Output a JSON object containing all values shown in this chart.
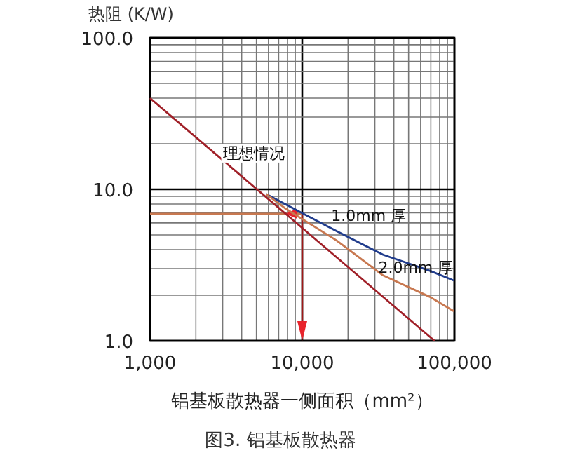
{
  "chart_data": {
    "type": "line",
    "ylabel": "热阻 (K/W)",
    "xlabel": "铝基板散热器一侧面积（mm²）",
    "log": "xy",
    "grid": true,
    "marker": "none",
    "line_style": "solid",
    "xlim": [
      1000,
      100000
    ],
    "ylim": [
      1,
      100
    ],
    "xticks": [
      {
        "value": 1000,
        "label": "1,000"
      },
      {
        "value": 2000,
        "label": null
      },
      {
        "value": 3000,
        "label": null
      },
      {
        "value": 4000,
        "label": null
      },
      {
        "value": 5000,
        "label": null
      },
      {
        "value": 6000,
        "label": null
      },
      {
        "value": 7000,
        "label": null
      },
      {
        "value": 8000,
        "label": null
      },
      {
        "value": 9000,
        "label": null
      },
      {
        "value": 10000,
        "label": "10,000"
      },
      {
        "value": 20000,
        "label": null
      },
      {
        "value": 30000,
        "label": null
      },
      {
        "value": 40000,
        "label": null
      },
      {
        "value": 50000,
        "label": null
      },
      {
        "value": 60000,
        "label": null
      },
      {
        "value": 70000,
        "label": null
      },
      {
        "value": 80000,
        "label": null
      },
      {
        "value": 90000,
        "label": null
      },
      {
        "value": 100000,
        "label": "100,000"
      }
    ],
    "yticks": [
      {
        "value": 1,
        "label": "1.0"
      },
      {
        "value": 2,
        "label": null
      },
      {
        "value": 3,
        "label": null
      },
      {
        "value": 4,
        "label": null
      },
      {
        "value": 5,
        "label": null
      },
      {
        "value": 6,
        "label": null
      },
      {
        "value": 7,
        "label": null
      },
      {
        "value": 8,
        "label": null
      },
      {
        "value": 9,
        "label": null
      },
      {
        "value": 10,
        "label": "10.0"
      },
      {
        "value": 20,
        "label": null
      },
      {
        "value": 30,
        "label": null
      },
      {
        "value": 40,
        "label": null
      },
      {
        "value": 50,
        "label": null
      },
      {
        "value": 60,
        "label": null
      },
      {
        "value": 70,
        "label": null
      },
      {
        "value": 80,
        "label": null
      },
      {
        "value": 90,
        "label": null
      },
      {
        "value": 100,
        "label": "100.0"
      }
    ],
    "series": [
      {
        "color": "#a02028",
        "x": [
          1000,
          74000
        ],
        "values": [
          40,
          1
        ]
      },
      {
        "color": "#203c8c",
        "x": [
          5800,
          9900,
          16800,
          34000,
          69000,
          99000
        ],
        "values": [
          9.3,
          7.0,
          5.3,
          3.7,
          2.9,
          2.5
        ]
      },
      {
        "color": "#c87850",
        "x": [
          5800,
          7700,
          16800,
          34000,
          69000,
          99000
        ],
        "values": [
          9.3,
          7.5,
          4.6,
          2.7,
          1.95,
          1.57
        ]
      }
    ],
    "ref_lines": [
      {
        "axis": "x",
        "value": 10000,
        "color": "#a01818"
      },
      {
        "axis": "y",
        "value": 6.9,
        "color": "#c87850"
      }
    ],
    "annotations": [
      {
        "text": "理想情况",
        "x": 3000,
        "y": 16
      },
      {
        "text": "1.0mm 厚",
        "x": 15500,
        "y": 6.2
      },
      {
        "text": "2.0mm 厚",
        "x": 31600,
        "y": 2.8
      },
      "图3. 铝基板散热器"
    ]
  }
}
